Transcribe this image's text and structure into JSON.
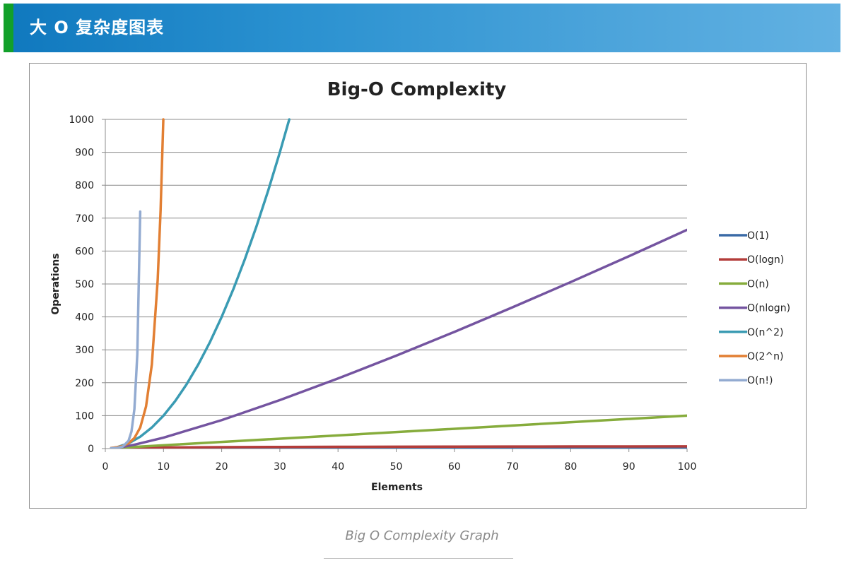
{
  "header": {
    "title": "大 O 复杂度图表",
    "accent_color": "#12a02a",
    "background_color": "#1c86c8"
  },
  "caption": "Big O Complexity Graph",
  "chart_data": {
    "type": "line",
    "title": "Big-O Complexity",
    "xlabel": "Elements",
    "ylabel": "Operations",
    "xlim": [
      0,
      100
    ],
    "ylim": [
      0,
      1000
    ],
    "x_ticks": [
      0,
      10,
      20,
      30,
      40,
      50,
      60,
      70,
      80,
      90,
      100
    ],
    "y_ticks": [
      0,
      100,
      200,
      300,
      400,
      500,
      600,
      700,
      800,
      900,
      1000
    ],
    "grid": "horizontal",
    "legend_position": "right",
    "series": [
      {
        "name": "O(1)",
        "color": "#3a6aa6",
        "x": [
          1,
          100
        ],
        "y": [
          1,
          1
        ]
      },
      {
        "name": "O(logn)",
        "color": "#b33c3a",
        "x": [
          1,
          2,
          5,
          10,
          20,
          30,
          40,
          50,
          60,
          70,
          80,
          90,
          100
        ],
        "y": [
          0,
          1,
          2.32,
          3.32,
          4.32,
          4.91,
          5.32,
          5.64,
          5.91,
          6.13,
          6.32,
          6.49,
          6.64
        ]
      },
      {
        "name": "O(n)",
        "color": "#86ac3c",
        "x": [
          1,
          100
        ],
        "y": [
          1,
          100
        ]
      },
      {
        "name": "O(nlogn)",
        "color": "#7454a0",
        "x": [
          1,
          2,
          5,
          10,
          20,
          30,
          40,
          50,
          60,
          70,
          80,
          90,
          100
        ],
        "y": [
          0,
          2,
          11.6,
          33.2,
          86.4,
          147.2,
          212.9,
          282.2,
          354.4,
          429.1,
          505.8,
          584.3,
          664.4
        ]
      },
      {
        "name": "O(n^2)",
        "color": "#3a9bb3",
        "x": [
          1,
          2,
          4,
          6,
          8,
          10,
          12,
          14,
          16,
          18,
          20,
          22,
          24,
          26,
          28,
          30,
          31.62
        ],
        "y": [
          1,
          4,
          16,
          36,
          64,
          100,
          144,
          196,
          256,
          324,
          400,
          484,
          576,
          676,
          784,
          900,
          1000
        ]
      },
      {
        "name": "O(2^n)",
        "color": "#e27f33",
        "x": [
          1,
          2,
          3,
          4,
          5,
          6,
          7,
          8,
          9,
          9.5,
          9.97
        ],
        "y": [
          2,
          4,
          8,
          16,
          32,
          64,
          128,
          256,
          512,
          724,
          1000
        ]
      },
      {
        "name": "O(n!)",
        "color": "#93abd1",
        "x": [
          1,
          2,
          3,
          4,
          4.5,
          5,
          5.5,
          6
        ],
        "y": [
          1,
          2,
          6,
          24,
          52,
          120,
          287,
          720
        ]
      }
    ]
  }
}
